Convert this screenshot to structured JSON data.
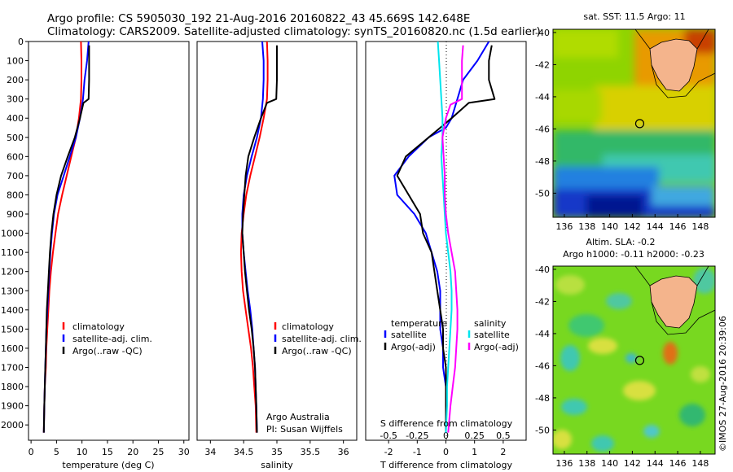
{
  "header": {
    "line1": "Argo profile: CS 5905030_192 21-Aug-2016 20160822_43 45.669S 142.648E",
    "line2": "Climatology: CARS2009. Satellite-adjusted climatology: synTS_20160820.nc (1.5d earlier)"
  },
  "colors": {
    "climatology": "#ff0000",
    "satellite": "#0000ff",
    "argo": "#000000",
    "sat_salinity": "#00e5ee",
    "argo_salinity_adj": "#ff00ff",
    "land": "#f4b48c"
  },
  "chart_data": [
    {
      "type": "line",
      "panel": "temperature",
      "xlabel": "temperature (deg C)",
      "ylabel": "",
      "xlim": [
        -0.5,
        31
      ],
      "ylim": [
        2080,
        0
      ],
      "xticks": [
        "0",
        "5",
        "10",
        "15",
        "20",
        "25",
        "30"
      ],
      "yticks": [
        "0",
        "100",
        "200",
        "300",
        "400",
        "500",
        "600",
        "700",
        "800",
        "900",
        "1000",
        "1100",
        "1200",
        "1300",
        "1400",
        "1500",
        "1600",
        "1700",
        "1800",
        "1900",
        "2000"
      ],
      "legend": {
        "position": "center-right",
        "entries": [
          "climatology",
          "satellite-adj. clim.",
          "Argo(..raw -QC)"
        ]
      },
      "series": [
        {
          "name": "climatology",
          "color": "#ff0000",
          "points": [
            [
              9.8,
              0
            ],
            [
              9.9,
              100
            ],
            [
              9.9,
              200
            ],
            [
              9.8,
              300
            ],
            [
              9.4,
              400
            ],
            [
              8.8,
              500
            ],
            [
              7.9,
              600
            ],
            [
              7.0,
              700
            ],
            [
              6.1,
              800
            ],
            [
              5.3,
              900
            ],
            [
              4.8,
              1000
            ],
            [
              4.3,
              1100
            ],
            [
              3.9,
              1200
            ],
            [
              3.6,
              1300
            ],
            [
              3.4,
              1400
            ],
            [
              3.2,
              1500
            ],
            [
              3.0,
              1600
            ],
            [
              2.9,
              1700
            ],
            [
              2.7,
              1800
            ],
            [
              2.6,
              1900
            ],
            [
              2.5,
              2040
            ]
          ]
        },
        {
          "name": "satellite-adj. clim.",
          "color": "#0000ff",
          "points": [
            [
              11.3,
              0
            ],
            [
              11.0,
              100
            ],
            [
              10.5,
              200
            ],
            [
              10.2,
              300
            ],
            [
              9.6,
              400
            ],
            [
              8.8,
              500
            ],
            [
              7.6,
              600
            ],
            [
              6.4,
              700
            ],
            [
              5.2,
              800
            ],
            [
              4.5,
              900
            ],
            [
              4.1,
              1000
            ],
            [
              3.8,
              1100
            ],
            [
              3.6,
              1200
            ],
            [
              3.4,
              1300
            ],
            [
              3.2,
              1400
            ],
            [
              3.0,
              1500
            ],
            [
              2.9,
              1600
            ],
            [
              2.8,
              1700
            ],
            [
              2.7,
              1800
            ],
            [
              2.6,
              1900
            ],
            [
              2.5,
              2040
            ]
          ]
        },
        {
          "name": "Argo(..raw -QC)",
          "color": "#000000",
          "points": [
            [
              11.4,
              20
            ],
            [
              11.4,
              100
            ],
            [
              11.4,
              200
            ],
            [
              11.3,
              300
            ],
            [
              10.3,
              320
            ],
            [
              9.6,
              400
            ],
            [
              8.6,
              500
            ],
            [
              7.2,
              600
            ],
            [
              5.9,
              700
            ],
            [
              5.0,
              800
            ],
            [
              4.4,
              900
            ],
            [
              4.0,
              1000
            ],
            [
              3.7,
              1100
            ],
            [
              3.5,
              1200
            ],
            [
              3.3,
              1300
            ],
            [
              3.1,
              1400
            ],
            [
              3.0,
              1500
            ],
            [
              2.9,
              1600
            ],
            [
              2.8,
              1700
            ],
            [
              2.7,
              1800
            ],
            [
              2.6,
              1900
            ],
            [
              2.5,
              2040
            ]
          ]
        }
      ]
    },
    {
      "type": "line",
      "panel": "salinity",
      "xlabel": "salinity",
      "xlim": [
        33.8,
        36.2
      ],
      "ylim": [
        2080,
        0
      ],
      "xticks": [
        "34",
        "34.5",
        "35",
        "35.5",
        "36"
      ],
      "legend": {
        "position": "center-right",
        "entries": [
          "climatology",
          "satellite-adj. clim.",
          "Argo(..raw -QC)"
        ]
      },
      "annotation": [
        "Argo Australia",
        "PI: Susan Wijffels"
      ],
      "series": [
        {
          "name": "climatology",
          "color": "#ff0000",
          "points": [
            [
              34.85,
              0
            ],
            [
              34.86,
              100
            ],
            [
              34.86,
              200
            ],
            [
              34.85,
              300
            ],
            [
              34.8,
              400
            ],
            [
              34.74,
              500
            ],
            [
              34.67,
              600
            ],
            [
              34.6,
              700
            ],
            [
              34.54,
              800
            ],
            [
              34.5,
              900
            ],
            [
              34.47,
              1000
            ],
            [
              34.46,
              1100
            ],
            [
              34.47,
              1200
            ],
            [
              34.49,
              1300
            ],
            [
              34.53,
              1400
            ],
            [
              34.57,
              1500
            ],
            [
              34.61,
              1600
            ],
            [
              34.64,
              1700
            ],
            [
              34.66,
              1800
            ],
            [
              34.68,
              1900
            ],
            [
              34.69,
              2040
            ]
          ]
        },
        {
          "name": "satellite-adj. clim.",
          "color": "#0000ff",
          "points": [
            [
              34.78,
              0
            ],
            [
              34.8,
              100
            ],
            [
              34.8,
              200
            ],
            [
              34.79,
              300
            ],
            [
              34.76,
              400
            ],
            [
              34.7,
              500
            ],
            [
              34.62,
              600
            ],
            [
              34.55,
              700
            ],
            [
              34.5,
              800
            ],
            [
              34.48,
              900
            ],
            [
              34.48,
              1000
            ],
            [
              34.5,
              1100
            ],
            [
              34.53,
              1200
            ],
            [
              34.56,
              1300
            ],
            [
              34.6,
              1400
            ],
            [
              34.63,
              1500
            ],
            [
              34.65,
              1600
            ],
            [
              34.67,
              1700
            ],
            [
              34.68,
              1800
            ],
            [
              34.69,
              1900
            ],
            [
              34.7,
              2040
            ]
          ]
        },
        {
          "name": "Argo(..raw -QC)",
          "color": "#000000",
          "points": [
            [
              35.0,
              20
            ],
            [
              35.0,
              100
            ],
            [
              35.0,
              200
            ],
            [
              34.99,
              300
            ],
            [
              34.85,
              320
            ],
            [
              34.76,
              400
            ],
            [
              34.66,
              500
            ],
            [
              34.57,
              600
            ],
            [
              34.53,
              700
            ],
            [
              34.51,
              800
            ],
            [
              34.49,
              900
            ],
            [
              34.48,
              1000
            ],
            [
              34.5,
              1100
            ],
            [
              34.52,
              1200
            ],
            [
              34.55,
              1300
            ],
            [
              34.58,
              1400
            ],
            [
              34.62,
              1500
            ],
            [
              34.65,
              1600
            ],
            [
              34.67,
              1700
            ],
            [
              34.68,
              1800
            ],
            [
              34.69,
              1900
            ],
            [
              34.7,
              2040
            ]
          ]
        }
      ]
    },
    {
      "type": "line",
      "panel": "differences",
      "xlabel": "T difference from climatology",
      "xlabel_top": "S difference from climatology",
      "xlim_T": [
        -2.8,
        2.8
      ],
      "xlim_S": [
        -0.7,
        0.7
      ],
      "ylim": [
        2080,
        0
      ],
      "xticks_T": [
        "-2",
        "-1",
        "0",
        "1",
        "2"
      ],
      "xticks_S": [
        "-0.5",
        "-0.25",
        "0",
        "0.25",
        "0.5"
      ],
      "legend": {
        "position": "center",
        "temperature_title": "temperature",
        "salinity_title": "salinity",
        "temperature_entries": [
          "satellite",
          "Argo(-adj)"
        ],
        "salinity_entries": [
          "satellite",
          "Argo(-adj)"
        ]
      },
      "series": [
        {
          "name": "satellite",
          "group": "temperature",
          "color": "#0000ff",
          "axis": "T",
          "points": [
            [
              1.5,
              0
            ],
            [
              1.1,
              100
            ],
            [
              0.6,
              200
            ],
            [
              0.4,
              300
            ],
            [
              0.2,
              400
            ],
            [
              0.0,
              450
            ],
            [
              -0.6,
              500
            ],
            [
              -1.3,
              600
            ],
            [
              -1.8,
              700
            ],
            [
              -1.7,
              800
            ],
            [
              -1.1,
              900
            ],
            [
              -0.7,
              1000
            ],
            [
              -0.5,
              1100
            ],
            [
              -0.3,
              1200
            ],
            [
              -0.2,
              1300
            ],
            [
              -0.2,
              1400
            ],
            [
              -0.2,
              1500
            ],
            [
              -0.1,
              1600
            ],
            [
              -0.1,
              1700
            ],
            [
              0.0,
              1800
            ],
            [
              0.0,
              1900
            ],
            [
              0.0,
              2040
            ]
          ]
        },
        {
          "name": "Argo(-adj)",
          "group": "temperature",
          "color": "#000000",
          "axis": "T",
          "points": [
            [
              1.6,
              20
            ],
            [
              1.5,
              100
            ],
            [
              1.5,
              200
            ],
            [
              1.7,
              300
            ],
            [
              0.8,
              320
            ],
            [
              0.2,
              400
            ],
            [
              -0.2,
              450
            ],
            [
              -0.6,
              500
            ],
            [
              -1.4,
              600
            ],
            [
              -1.7,
              700
            ],
            [
              -1.3,
              800
            ],
            [
              -0.9,
              900
            ],
            [
              -0.8,
              1000
            ],
            [
              -0.5,
              1100
            ],
            [
              -0.4,
              1200
            ],
            [
              -0.3,
              1300
            ],
            [
              -0.2,
              1400
            ],
            [
              -0.1,
              1500
            ],
            [
              -0.1,
              1600
            ],
            [
              0.0,
              1700
            ],
            [
              0.0,
              1800
            ],
            [
              0.0,
              1900
            ],
            [
              0.0,
              2040
            ]
          ]
        },
        {
          "name": "satellite",
          "group": "salinity",
          "color": "#00e5ee",
          "axis": "S",
          "points": [
            [
              -0.07,
              0
            ],
            [
              -0.06,
              100
            ],
            [
              -0.05,
              200
            ],
            [
              -0.04,
              300
            ],
            [
              -0.03,
              400
            ],
            [
              -0.03,
              500
            ],
            [
              -0.04,
              600
            ],
            [
              -0.03,
              700
            ],
            [
              -0.02,
              800
            ],
            [
              -0.01,
              900
            ],
            [
              0.0,
              1000
            ],
            [
              0.02,
              1100
            ],
            [
              0.04,
              1200
            ],
            [
              0.05,
              1300
            ],
            [
              0.05,
              1400
            ],
            [
              0.04,
              1500
            ],
            [
              0.03,
              1600
            ],
            [
              0.02,
              1700
            ],
            [
              0.01,
              1800
            ],
            [
              0.01,
              1900
            ],
            [
              0.0,
              2040
            ]
          ]
        },
        {
          "name": "Argo(-adj)",
          "group": "salinity",
          "color": "#ff00ff",
          "axis": "S",
          "points": [
            [
              0.15,
              20
            ],
            [
              0.14,
              100
            ],
            [
              0.14,
              200
            ],
            [
              0.14,
              300
            ],
            [
              0.04,
              330
            ],
            [
              0.0,
              400
            ],
            [
              -0.03,
              500
            ],
            [
              -0.02,
              600
            ],
            [
              -0.01,
              700
            ],
            [
              -0.01,
              800
            ],
            [
              0.0,
              900
            ],
            [
              0.02,
              1000
            ],
            [
              0.05,
              1100
            ],
            [
              0.08,
              1200
            ],
            [
              0.09,
              1300
            ],
            [
              0.1,
              1400
            ],
            [
              0.1,
              1500
            ],
            [
              0.09,
              1600
            ],
            [
              0.08,
              1700
            ],
            [
              0.06,
              1800
            ],
            [
              0.04,
              1900
            ],
            [
              0.02,
              2040
            ]
          ]
        }
      ]
    },
    {
      "type": "heatmap",
      "panel": "sst_map",
      "title": "sat. SST: 11.5 Argo: 11",
      "xlim": [
        135,
        149.3
      ],
      "ylim": [
        -51.5,
        -39.8
      ],
      "xticks": [
        "136",
        "138",
        "140",
        "142",
        "144",
        "146",
        "148"
      ],
      "yticks": [
        "-40",
        "-42",
        "-44",
        "-46",
        "-48",
        "-50"
      ],
      "argo_position": {
        "lon": 142.65,
        "lat": -45.67
      }
    },
    {
      "type": "heatmap",
      "panel": "sla_map",
      "title_line1": "Altim. SLA: -0.2",
      "title_line2": "Argo h1000: -0.11 h2000: -0.23",
      "xlim": [
        135,
        149.3
      ],
      "ylim": [
        -51.5,
        -39.8
      ],
      "xticks": [
        "136",
        "138",
        "140",
        "142",
        "144",
        "146",
        "148"
      ],
      "yticks": [
        "-40",
        "-42",
        "-44",
        "-46",
        "-48",
        "-50"
      ],
      "argo_position": {
        "lon": 142.65,
        "lat": -45.67
      },
      "credit": "©IMOS 27-Aug-2016 20:39:06"
    }
  ]
}
